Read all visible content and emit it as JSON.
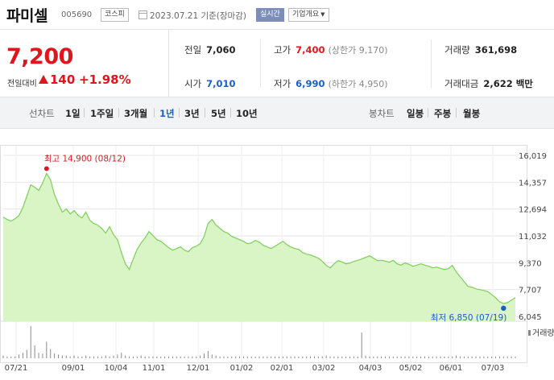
{
  "header": {
    "name": "파미셀",
    "code": "005690",
    "market": "코스피",
    "date_label": "2023.07.21  기준(장마감)",
    "live_label": "실시간",
    "info_label": "기업개요"
  },
  "price": {
    "current": "7,200",
    "change_label": "전일대비",
    "change": "140",
    "change_pct": "+1.98%"
  },
  "stats": {
    "prev_label": "전일",
    "prev": "7,060",
    "high_label": "고가",
    "high": "7,400",
    "upper_limit": "(상한가 9,170)",
    "volume_label": "거래량",
    "volume": "361,698",
    "open_label": "시가",
    "open": "7,010",
    "low_label": "저가",
    "low": "6,990",
    "lower_limit": "(하한가 4,950)",
    "amount_label": "거래대금",
    "amount": "2,622 백만"
  },
  "tabs": {
    "line_label": "선차트",
    "periods": [
      "1일",
      "1주일",
      "3개월",
      "1년",
      "3년",
      "5년",
      "10년"
    ],
    "active": "1년",
    "candle_label": "봉차트",
    "candles": [
      "일봉",
      "주봉",
      "월봉"
    ]
  },
  "chart_data": {
    "type": "area",
    "ylim": [
      6045,
      16019
    ],
    "yticks": [
      "16,019",
      "14,357",
      "12,694",
      "11,032",
      "9,370",
      "7,707",
      "6,045"
    ],
    "xticks": [
      "07/21",
      "09/01",
      "10/04",
      "11/01",
      "12/01",
      "01/02",
      "02/01",
      "03/02",
      "04/03",
      "05/02",
      "06/01",
      "07/03"
    ],
    "max_label": "최고 14,900 (08/12)",
    "min_label": "최저 6,850 (07/19)",
    "volume_label": "거래량",
    "fill_color": "#d9f5c6",
    "line_color": "#7ccf5a",
    "max_color": "#e0161d",
    "min_color": "#1a5ec6",
    "values": [
      12200,
      12050,
      11950,
      12100,
      12300,
      12800,
      13500,
      14200,
      14050,
      13850,
      14300,
      14900,
      14500,
      13600,
      13000,
      12500,
      12700,
      12400,
      12600,
      12300,
      12150,
      12500,
      12000,
      11800,
      11700,
      11500,
      11200,
      11600,
      11100,
      10800,
      10000,
      9300,
      8950,
      9600,
      10200,
      10600,
      10900,
      11300,
      11050,
      10800,
      10700,
      10500,
      10300,
      10150,
      10250,
      10350,
      10150,
      10050,
      10300,
      10400,
      10550,
      11000,
      11800,
      12050,
      11700,
      11500,
      11300,
      11200,
      11000,
      10900,
      10800,
      10700,
      10550,
      10600,
      10750,
      10650,
      10450,
      10350,
      10250,
      10400,
      10550,
      10700,
      10500,
      10350,
      10250,
      10200,
      10000,
      9900,
      9850,
      9750,
      9650,
      9450,
      9200,
      9050,
      9300,
      9500,
      9420,
      9300,
      9350,
      9450,
      9520,
      9600,
      9700,
      9800,
      9650,
      9500,
      9520,
      9470,
      9400,
      9520,
      9300,
      9220,
      9360,
      9270,
      9150,
      9220,
      9300,
      9220,
      9150,
      9050,
      9100,
      9020,
      8950,
      9000,
      9200,
      8800,
      8500,
      8200,
      7900,
      7850,
      7750,
      7700,
      7650,
      7580,
      7400,
      7200,
      6950,
      6850,
      6900,
      7050,
      7200
    ],
    "volume": [
      3,
      2,
      2,
      2,
      4,
      6,
      9,
      35,
      14,
      6,
      5,
      18,
      10,
      5,
      4,
      3,
      3,
      2,
      3,
      2,
      2,
      3,
      2,
      2,
      2,
      2,
      3,
      2,
      3,
      4,
      6,
      3,
      2,
      2,
      2,
      3,
      2,
      2,
      2,
      2,
      2,
      2,
      2,
      2,
      2,
      2,
      2,
      2,
      2,
      2,
      3,
      5,
      8,
      4,
      3,
      2,
      2,
      2,
      2,
      2,
      2,
      2,
      2,
      2,
      2,
      2,
      2,
      2,
      2,
      2,
      2,
      2,
      2,
      2,
      2,
      2,
      2,
      2,
      2,
      2,
      2,
      2,
      3,
      2,
      2,
      2,
      2,
      2,
      2,
      2,
      2,
      28,
      3,
      2,
      2,
      2,
      2,
      2,
      2,
      2,
      2,
      2,
      2,
      2,
      2,
      2,
      2,
      2,
      2,
      2,
      2,
      2,
      2,
      2,
      2,
      3,
      2,
      2,
      2,
      2,
      2,
      2,
      2,
      2,
      2,
      2,
      2,
      2,
      2,
      2,
      2
    ]
  }
}
